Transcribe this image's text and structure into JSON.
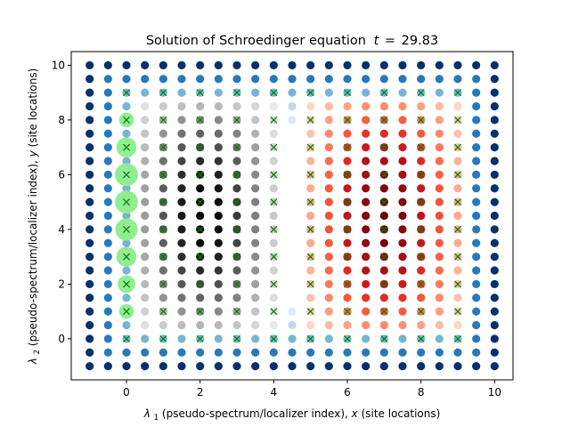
{
  "chart_data": {
    "type": "scatter",
    "title": "Solution of Schroedinger equation",
    "title_time_symbol": "t",
    "title_time_value": "29.83",
    "xlabel_symbol": "λ",
    "xlabel_sub": "1",
    "xlabel_text": " (pseudo-spectrum/localizer index), ",
    "xlabel_var": "x",
    "xlabel_tail": " (site locations)",
    "ylabel_symbol": "λ",
    "ylabel_sub": "2",
    "ylabel_text": " (pseudo-spectrum/localizer index), ",
    "ylabel_var": "y",
    "ylabel_tail": " (site locations)",
    "xlim": [
      -1.5,
      10.5
    ],
    "ylim": [
      -1.5,
      10.5
    ],
    "xticks": [
      "0",
      "2",
      "4",
      "6",
      "8",
      "10"
    ],
    "yticks": [
      "0",
      "2",
      "4",
      "6",
      "8",
      "10"
    ],
    "grid": false,
    "lattice": {
      "x_min": -1,
      "x_max": 10,
      "y_min": -1,
      "y_max": 10,
      "step": 0.5,
      "regions": [
        {
          "name": "boundary",
          "colormap": "Blues",
          "x_range": [
            -1,
            10
          ],
          "y_range": [
            -1,
            10
          ]
        },
        {
          "name": "left-wave",
          "colormap": "Greys",
          "x_range": [
            0.5,
            4
          ],
          "y_range": [
            0.5,
            8.5
          ],
          "peak_x": 2.1
        },
        {
          "name": "right-wave",
          "colormap": "Reds",
          "x_range": [
            5,
            9
          ],
          "y_range": [
            0.5,
            8.5
          ],
          "peak_x": 7
        }
      ]
    },
    "site_markers": {
      "symbol": "x",
      "color": "#008000",
      "x": [
        0,
        1,
        2,
        3,
        4,
        5,
        6,
        7,
        8,
        9
      ],
      "y": [
        0,
        1,
        2,
        3,
        4,
        5,
        6,
        7,
        8,
        9
      ]
    },
    "probability_circles": {
      "color": "#90ee90",
      "points": [
        {
          "x": 0,
          "y": 1,
          "value": 0.35
        },
        {
          "x": 0,
          "y": 2,
          "value": 0.5
        },
        {
          "x": 0,
          "y": 3,
          "value": 0.65
        },
        {
          "x": 0,
          "y": 4,
          "value": 0.8
        },
        {
          "x": 0,
          "y": 5,
          "value": 0.85
        },
        {
          "x": 0,
          "y": 6,
          "value": 0.85
        },
        {
          "x": 0,
          "y": 7,
          "value": 0.65
        },
        {
          "x": 0,
          "y": 8,
          "value": 0.35
        }
      ]
    }
  }
}
